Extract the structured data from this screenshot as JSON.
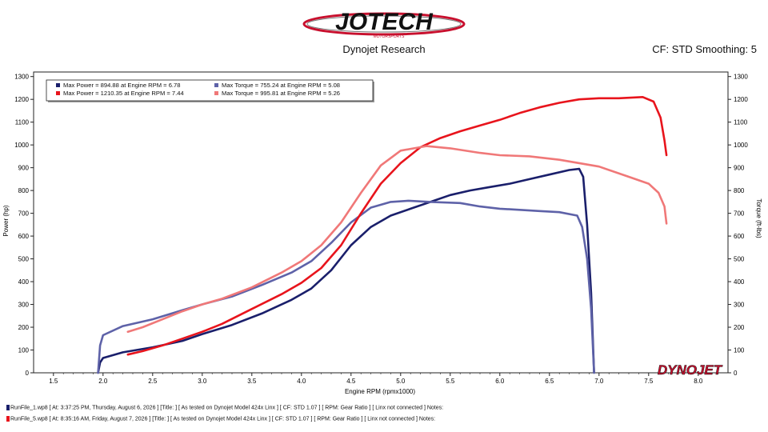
{
  "header": {
    "logo_text": "JOTECH",
    "logo_subtext": "MOTORSPORTS",
    "title": "Dynojet Research",
    "right_info": "CF: STD Smoothing: 5"
  },
  "brand_mark": "DYNOJET",
  "chart_data": {
    "type": "line",
    "xlabel": "Engine RPM (rpmx1000)",
    "ylabel_left": "Power (hp)",
    "ylabel_right": "Torque (ft-lbs)",
    "xlim": [
      1.3,
      8.3
    ],
    "ylim": [
      0,
      1320
    ],
    "x_ticks": [
      "1.5",
      "2.0",
      "2.5",
      "3.0",
      "3.5",
      "4.0",
      "4.5",
      "5.0",
      "5.5",
      "6.0",
      "6.5",
      "7.0",
      "7.5",
      "8.0"
    ],
    "y_ticks": [
      "0",
      "100",
      "200",
      "300",
      "400",
      "500",
      "600",
      "700",
      "800",
      "900",
      "1000",
      "1100",
      "1200",
      "1300"
    ],
    "grid": false,
    "legend_position": "top-left",
    "legend": [
      "Max Power = 894.88 at Engine RPM = 6.78",
      "Max Torque = 755.24 at Engine RPM = 5.08",
      "Max Power = 1210.35 at Engine RPM = 7.44",
      "Max Torque = 995.81 at Engine RPM = 5.26"
    ],
    "series": [
      {
        "color": "#1a1f6b",
        "x": [
          1.95,
          1.97,
          2.0,
          2.2,
          2.5,
          2.8,
          3.0,
          3.3,
          3.6,
          3.9,
          4.1,
          4.3,
          4.5,
          4.7,
          4.9,
          5.1,
          5.3,
          5.5,
          5.7,
          5.9,
          6.1,
          6.3,
          6.5,
          6.7,
          6.8,
          6.84,
          6.88,
          6.92,
          6.95
        ],
        "y": [
          0,
          45,
          65,
          90,
          112,
          140,
          170,
          210,
          260,
          320,
          370,
          450,
          560,
          640,
          690,
          720,
          750,
          780,
          800,
          815,
          830,
          850,
          870,
          890,
          895,
          860,
          650,
          350,
          0
        ]
      },
      {
        "color": "#5e62a8",
        "x": [
          1.95,
          1.97,
          2.0,
          2.2,
          2.5,
          2.8,
          3.0,
          3.3,
          3.6,
          3.9,
          4.1,
          4.3,
          4.5,
          4.7,
          4.9,
          5.08,
          5.3,
          5.6,
          5.8,
          6.0,
          6.2,
          6.4,
          6.6,
          6.78,
          6.83,
          6.88,
          6.92,
          6.95
        ],
        "y": [
          0,
          120,
          165,
          205,
          235,
          275,
          300,
          335,
          385,
          440,
          490,
          570,
          660,
          725,
          750,
          755,
          750,
          745,
          730,
          720,
          715,
          710,
          705,
          690,
          640,
          500,
          280,
          0
        ]
      },
      {
        "color": "#e8141c",
        "x": [
          2.25,
          2.4,
          2.6,
          2.8,
          3.0,
          3.2,
          3.5,
          3.8,
          4.0,
          4.2,
          4.4,
          4.6,
          4.8,
          5.0,
          5.2,
          5.4,
          5.6,
          5.8,
          6.0,
          6.2,
          6.4,
          6.6,
          6.8,
          7.0,
          7.2,
          7.44,
          7.55,
          7.62,
          7.66,
          7.68
        ],
        "y": [
          80,
          95,
          120,
          150,
          180,
          215,
          280,
          345,
          395,
          460,
          560,
          700,
          830,
          920,
          990,
          1030,
          1060,
          1085,
          1110,
          1140,
          1165,
          1185,
          1200,
          1205,
          1205,
          1210,
          1190,
          1120,
          1020,
          955
        ]
      },
      {
        "color": "#f07878",
        "x": [
          2.25,
          2.4,
          2.6,
          2.8,
          3.0,
          3.2,
          3.5,
          3.8,
          4.0,
          4.2,
          4.4,
          4.6,
          4.8,
          5.0,
          5.26,
          5.5,
          5.8,
          6.0,
          6.3,
          6.6,
          7.0,
          7.3,
          7.5,
          7.6,
          7.66,
          7.68
        ],
        "y": [
          180,
          200,
          235,
          270,
          300,
          325,
          375,
          440,
          490,
          560,
          660,
          790,
          910,
          975,
          995,
          985,
          965,
          955,
          950,
          935,
          905,
          860,
          830,
          790,
          730,
          655
        ]
      }
    ]
  },
  "footer": {
    "run1": "RunFile_1.wp8 [ At: 3:37:25 PM, Thursday, August 6, 2026 ] [Title: ] [ As tested on Dynojet Model 424x Linx ] [ CF: STD 1.07 ] [ RPM: Gear Ratio ] [ Linx not connected ] Notes:",
    "run2": "RunFile_5.wp8 [ At: 8:35:16 AM, Friday, August 7, 2026 ] [Title: ] [ As tested on Dynojet Model 424x Linx ] [ CF: STD 1.07 ] [ RPM: Gear Ratio ] [ Linx not connected ] Notes:"
  }
}
